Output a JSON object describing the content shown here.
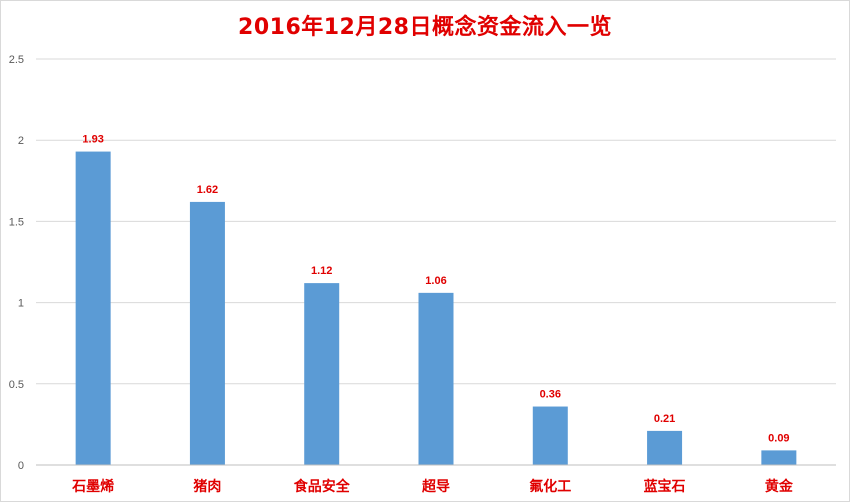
{
  "chart_data": {
    "type": "bar",
    "title": "2016年12月28日概念资金流入一览",
    "xlabel": "",
    "ylabel": "",
    "categories": [
      "石墨烯",
      "猪肉",
      "食品安全",
      "超导",
      "氟化工",
      "蓝宝石",
      "黄金"
    ],
    "values": [
      1.93,
      1.62,
      1.12,
      1.06,
      0.36,
      0.21,
      0.09
    ],
    "data_labels": [
      "1.93",
      "1.62",
      "1.12",
      "1.06",
      "0.36",
      "0.21",
      "0.09"
    ],
    "ylim": [
      0,
      2.5
    ],
    "yticks": [
      "0",
      "0.5",
      "1",
      "1.5",
      "2",
      "2.5"
    ],
    "grid": true,
    "legend": "none",
    "colors": {
      "bar": "#5b9bd5",
      "title": "#e00000",
      "labels": "#e00000",
      "grid": "#d9d9d9",
      "axis": "#bfbfbf"
    }
  }
}
